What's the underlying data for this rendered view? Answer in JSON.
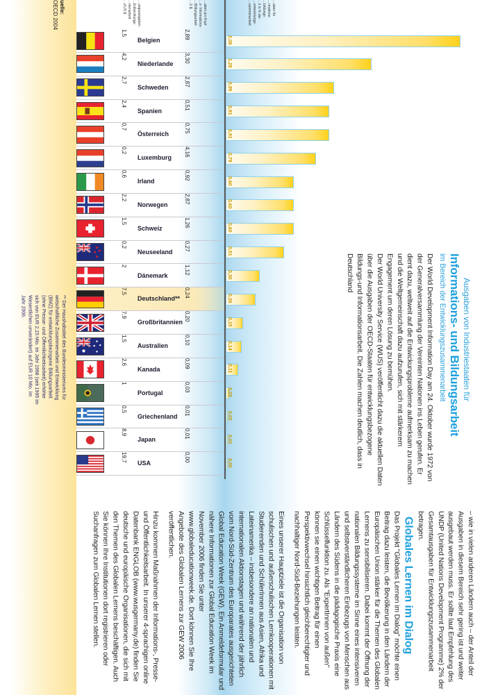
{
  "source": {
    "label": "Quelle:",
    "value": "OECD 2004"
  },
  "headers": {
    "total": [
      "…ungsausgaben",
      "…Entwicklungs-",
      "…menarbeit",
      "…d US $"
    ],
    "per_capita": [
      "…aben pro Kopf",
      "…s- Informations-",
      "…Bildungsarbeit",
      "…S $"
    ],
    "share": [
      "…aben für",
      "…rmations-",
      "…bildungs-",
      "…il in % der",
      "…entwicklungs-",
      "…sammenarbeit"
    ]
  },
  "colors": {
    "accent_blue": "#1ea0dd",
    "bar_yellow": "#ffd21a",
    "bar_border": "#8fd0ea"
  },
  "chart_data": {
    "type": "bar",
    "orientation": "horizontal",
    "title": "Ausgaben von Industriestaaten für Informations- und Bildungsarbeit",
    "categories": [
      "Belgien",
      "Niederlande",
      "Schweden",
      "Spanien",
      "Österreich",
      "Luxemburg",
      "Irland",
      "Norwegen",
      "Schweiz",
      "Neuseeland",
      "Dänemark",
      "Deutschland**",
      "Großbritannien",
      "Australien",
      "Kanada",
      "Portugal",
      "Griechenland",
      "Japan",
      "USA"
    ],
    "values": [
      2.06,
      1.28,
      0.95,
      0.91,
      0.91,
      0.79,
      0.6,
      0.6,
      0.6,
      0.51,
      0.3,
      0.26,
      0.15,
      0.14,
      0.11,
      0.03,
      0.02,
      0.01,
      0.0
    ],
    "xlim": [
      0,
      2.1
    ]
  },
  "rows": [
    {
      "name": "Belgien",
      "total": "1,5",
      "per_capita": "2,89",
      "share_label": "2,06",
      "flag": "belgium"
    },
    {
      "name": "Niederlande",
      "total": "4,2",
      "per_capita": "3,30",
      "share_label": "1,28",
      "flag": "netherlands"
    },
    {
      "name": "Schweden",
      "total": "2,7",
      "per_capita": "2,87",
      "share_label": "0,95",
      "flag": "sweden"
    },
    {
      "name": "Spanien",
      "total": "2,4",
      "per_capita": "0,51",
      "share_label": "0,91",
      "flag": "spain"
    },
    {
      "name": "Österreich",
      "total": "0,7",
      "per_capita": "0,75",
      "share_label": "0,91",
      "flag": "austria"
    },
    {
      "name": "Luxemburg",
      "total": "0,2",
      "per_capita": "4,16",
      "share_label": "0,79",
      "flag": "luxembourg"
    },
    {
      "name": "Irland",
      "total": "0,6",
      "per_capita": "0,92",
      "share_label": "0,60",
      "flag": "ireland"
    },
    {
      "name": "Norwegen",
      "total": "2,2",
      "per_capita": "2,87",
      "share_label": "0,60",
      "flag": "norway"
    },
    {
      "name": "Schweiz",
      "total": "1,5",
      "per_capita": "1,26",
      "share_label": "0,60",
      "flag": "switzerland"
    },
    {
      "name": "Neuseeland",
      "total": "0,2",
      "per_capita": "0,27",
      "share_label": "0,51",
      "flag": "newzealand"
    },
    {
      "name": "Dänemark",
      "total": "2",
      "per_capita": "1,12",
      "share_label": "0,30",
      "flag": "denmark"
    },
    {
      "name": "Deutschland**",
      "total": "7,5",
      "per_capita": "0,24",
      "share_label": "0,26",
      "flag": "germany",
      "highlight": true
    },
    {
      "name": "Großbritannien",
      "total": "7,9",
      "per_capita": "0,20",
      "share_label": "0,15",
      "flag": "uk"
    },
    {
      "name": "Australien",
      "total": "1,5",
      "per_capita": "0,10",
      "share_label": "0,14",
      "flag": "australia"
    },
    {
      "name": "Kanada",
      "total": "2,6",
      "per_capita": "0,09",
      "share_label": "0,11",
      "flag": "canada"
    },
    {
      "name": "Portugal",
      "total": "1",
      "per_capita": "0,03",
      "share_label": "0,03",
      "flag": "portugal"
    },
    {
      "name": "Griechenland",
      "total": "0,5",
      "per_capita": "0,01",
      "share_label": "0,02",
      "flag": "greece"
    },
    {
      "name": "Japan",
      "total": "8,9",
      "per_capita": "0,01",
      "share_label": "0,01",
      "flag": "japan"
    },
    {
      "name": "USA",
      "total": "19,7",
      "per_capita": "0,00",
      "share_label": "0,00",
      "flag": "usa"
    }
  ],
  "footnote": "** Der Haushaltstitel des Bundesministeriums für wirtschaftliche Zusammenarbeit und Entwicklung (BMZ) für entwicklungsbezogene Bildungsarbeit (ohne Presse- und Öffentlichkeitsarbeit) erhöhte sich von EUR 2,15 Mio. im Jahr 1998 (seit 1995 im Wesentlichen unverändert) auf EUR 10 Mio. im Jahr 2006.",
  "intro": {
    "kicker": "Ausgaben von Industriestaaten für",
    "title": "Informations- und Bildungsarbeit",
    "subtitle": "im Bereich der Entwicklungszusammenarbeit",
    "body": "Der World Development Information Day am 24. Oktober wurde 1972 von der Generalversammlung der Vereinten Nationen ins Leben gerufen. Er dient dazu, weltweit auf die Entwickungsprobleme aufmerksam zu machen und die Weltgemeinschaft dazu aufzurufen, sich mit stärkerem Engagement um deren Lösung zu bemühen.",
    "body2": "Der World University Service (WUS) veröffentlicht dazu die aktuellen Daten über die Ausgaben der OECD-Staaten für entwicklungsbezogene Bildungs-und Informationsarbeit. Die Zahlen machen deutlich, dass in Deutschland"
  },
  "article": {
    "continuation": "– wie in vielen anderen Ländern auch – der Anteil der Ausgaben in diesem Bereich sehr gering ist und weiter ausgebaut werden muss. Er sollte laut Empfehlung des UNDP (United Nations Development Programme) 2% der Gesamtausgaben für Entwicklungszusammenarbeit betragen.",
    "heading": "Globales Lernen im Dialog",
    "p1": "Das Projekt \"Globales Lernen im Dialog\" möchte einen Beitrag dazu leisten, die Bevölkerung in den Ländern der Europäischen Union stärker für die Themen des Globalen Lernens zu sensibilisieren. Dabei kommt der Öffnung der nationalen Bildungssysteme im Sinne eines intensiveren und selbstverständlicheren Einbezugs von Menschen aus Ländern des Südens in die pädagogische Praxis eine Schlüsselfunktion zu. Als \"ExpertInnen von außen\" können sie einen wichtigen Beitrag für einen Perspektivwechsel hinsichtlich gleichberechtigter und nachhaltiger Nord-Süd-Beziehungen leisten.",
    "p2": "Eines unserer Hauptziele ist die Organisation von schulischen und außerschulischen Lernkooperationen mit Studierenden und SchülerInnen aus Asien, Afrika und Lateinamerika – insbesondere an nationalen und internationalen Aktionstagen und während der jährlich vom Nord-Süd-Zentrum des Europarates ausgerichteten Global Education Week (GEW). Ein Anmeldeformular und nähere Informationen zur Global Education Week im November 2006 finden Sie unter www.globaleducationweek.de. Dort können Sie Ihre Angebote des Globalen Lernens zur GEW 2006 veröffentlichen.",
    "p3": "Hinzu kommen Maßnahmen der Informations-, Presse- und Öffentlichkeitsarbeit. In unserer 4-sprachigen online Datenbank ENGLOB (www.wusgermany.de) finden Sie deutsche und europäische Organisationen, die sich mit den Themen des Globalen Lernens beschäftigen. Auch Sie können Ihre Institutionen dort registrieren oder Suchanfragen zum Globalen Lernen stellen."
  }
}
